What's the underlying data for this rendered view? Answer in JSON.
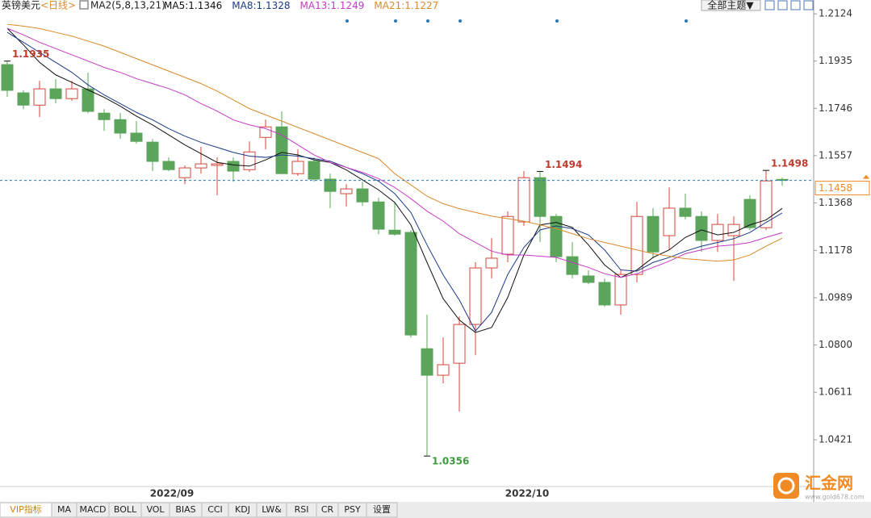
{
  "chart_data": {
    "type": "candlestick",
    "symbol": "英镑美元",
    "period": "<日线>",
    "indicator": "MA2(5,8,13,21)",
    "theme_button": "全部主题▼",
    "ylim": [
      1.0234,
      1.2147
    ],
    "yticks": [
      1.2124,
      1.1935,
      1.1746,
      1.1557,
      1.1368,
      1.1178,
      1.0989,
      {
        "value": 1.08,
        "label": "1.0800"
      },
      1.0611,
      1.0421
    ],
    "up_color": "#d2473a",
    "down_color": "#5aa55a",
    "ohlc": {
      "open": [
        1.1921,
        1.1808,
        1.1759,
        1.1824,
        1.1785,
        1.1824,
        1.1727,
        1.1701,
        1.1647,
        1.1611,
        1.1534,
        1.1469,
        1.1508,
        1.1518,
        1.1534,
        1.1501,
        1.163,
        1.1672,
        1.1485,
        1.1534,
        1.1463,
        1.1405,
        1.1424,
        1.1372,
        1.1259,
        1.125,
        1.0785,
        1.0679,
        1.0727,
        1.0882,
        1.1108,
        1.1163,
        1.1292,
        1.1469,
        1.1314,
        1.1153,
        1.1076,
        1.105,
        1.096,
        1.1082,
        1.1314,
        1.1237,
        1.1347,
        1.1314,
        1.1218,
        1.1237,
        1.1382,
        1.1269,
        1.1462
      ],
      "high": [
        1.1935,
        1.1818,
        1.1856,
        1.1863,
        1.1856,
        1.1889,
        1.1743,
        1.1727,
        1.1695,
        1.1624,
        1.155,
        1.1518,
        1.1592,
        1.155,
        1.155,
        1.1614,
        1.1701,
        1.1734,
        1.1582,
        1.155,
        1.1485,
        1.1443,
        1.1453,
        1.1389,
        1.1372,
        1.1259,
        1.0921,
        1.083,
        1.0914,
        1.1131,
        1.1227,
        1.1334,
        1.1495,
        1.1494,
        1.1324,
        1.1211,
        1.1098,
        1.1066,
        1.1098,
        1.1372,
        1.1347,
        1.143,
        1.1405,
        1.1334,
        1.1324,
        1.1314,
        1.1398,
        1.1498,
        1.1469
      ],
      "low": [
        1.1792,
        1.1743,
        1.1711,
        1.1766,
        1.1776,
        1.1727,
        1.1656,
        1.1624,
        1.1605,
        1.1495,
        1.1495,
        1.1443,
        1.1485,
        1.1398,
        1.1453,
        1.1492,
        1.1582,
        1.1485,
        1.1476,
        1.1453,
        1.1347,
        1.1353,
        1.1356,
        1.1243,
        1.1237,
        1.083,
        1.0356,
        1.0647,
        1.0534,
        1.0759,
        1.1066,
        1.1131,
        1.1276,
        1.1211,
        1.1131,
        1.1066,
        1.1043,
        1.0953,
        1.0921,
        1.105,
        1.1147,
        1.1179,
        1.1302,
        1.1172,
        1.1172,
        1.1056,
        1.1259,
        1.1259,
        1.1437
      ],
      "close": [
        1.1818,
        1.1759,
        1.1824,
        1.1785,
        1.1824,
        1.1734,
        1.1701,
        1.1647,
        1.1614,
        1.1534,
        1.1501,
        1.1508,
        1.1524,
        1.1524,
        1.1495,
        1.1572,
        1.1672,
        1.1485,
        1.1534,
        1.1463,
        1.1414,
        1.1424,
        1.1372,
        1.1263,
        1.1243,
        1.084,
        1.0679,
        1.0721,
        1.0882,
        1.1108,
        1.1147,
        1.1314,
        1.1469,
        1.1314,
        1.1153,
        1.1082,
        1.105,
        1.096,
        1.1082,
        1.1314,
        1.1172,
        1.1347,
        1.1314,
        1.1218,
        1.1282,
        1.1282,
        1.1269,
        1.1456,
        1.1458
      ]
    },
    "series": [
      {
        "name": "MA5",
        "last": 1.1346,
        "color": "#111111",
        "values": [
          1.2066,
          1.2,
          1.193,
          1.188,
          1.185,
          1.182,
          1.179,
          1.1755,
          1.1715,
          1.168,
          1.164,
          1.16,
          1.1565,
          1.153,
          1.152,
          1.1515,
          1.154,
          1.157,
          1.156,
          1.154,
          1.153,
          1.15,
          1.146,
          1.142,
          1.137,
          1.128,
          1.113,
          1.0985,
          1.09,
          1.085,
          1.087,
          1.099,
          1.116,
          1.128,
          1.129,
          1.127,
          1.12,
          1.112,
          1.107,
          1.11,
          1.115,
          1.118,
          1.123,
          1.126,
          1.124,
          1.125,
          1.128,
          1.13,
          1.1346
        ]
      },
      {
        "name": "MA8",
        "last": 1.1328,
        "color": "#1a3a8a",
        "values": [
          1.205,
          1.201,
          1.197,
          1.193,
          1.189,
          1.184,
          1.18,
          1.1765,
          1.173,
          1.17,
          1.1665,
          1.1635,
          1.161,
          1.159,
          1.157,
          1.1555,
          1.155,
          1.156,
          1.1555,
          1.1545,
          1.1535,
          1.151,
          1.1485,
          1.1455,
          1.1405,
          1.133,
          1.12,
          1.108,
          1.098,
          1.0856,
          1.093,
          1.1082,
          1.119,
          1.126,
          1.1276,
          1.1265,
          1.124,
          1.118,
          1.11,
          1.1095,
          1.113,
          1.115,
          1.1175,
          1.1195,
          1.121,
          1.1225,
          1.125,
          1.129,
          1.1328
        ]
      },
      {
        "name": "MA13",
        "last": 1.1249,
        "color": "#c639c6",
        "values": [
          1.2066,
          1.204,
          1.201,
          1.1985,
          1.196,
          1.1935,
          1.191,
          1.189,
          1.1865,
          1.1845,
          1.1825,
          1.18,
          1.1765,
          1.1735,
          1.17,
          1.168,
          1.1665,
          1.164,
          1.16,
          1.156,
          1.153,
          1.151,
          1.149,
          1.1465,
          1.143,
          1.1385,
          1.1335,
          1.1295,
          1.1245,
          1.121,
          1.1175,
          1.116,
          1.116,
          1.1155,
          1.115,
          1.113,
          1.111,
          1.1085,
          1.107,
          1.1085,
          1.111,
          1.1135,
          1.1165,
          1.118,
          1.1195,
          1.12,
          1.121,
          1.123,
          1.1249
        ]
      },
      {
        "name": "MA21",
        "last": 1.1227,
        "color": "#d98a2b",
        "values": [
          1.2082,
          1.2075,
          1.2065,
          1.205,
          1.2035,
          1.2015,
          1.1995,
          1.197,
          1.1945,
          1.192,
          1.1895,
          1.187,
          1.1845,
          1.1815,
          1.178,
          1.1745,
          1.172,
          1.1695,
          1.167,
          1.1645,
          1.162,
          1.1595,
          1.157,
          1.1545,
          1.1485,
          1.144,
          1.1395,
          1.1365,
          1.1345,
          1.133,
          1.1315,
          1.1305,
          1.1295,
          1.128,
          1.1265,
          1.1245,
          1.1225,
          1.121,
          1.1195,
          1.118,
          1.1165,
          1.1155,
          1.1145,
          1.114,
          1.1135,
          1.114,
          1.116,
          1.1195,
          1.1227
        ]
      }
    ],
    "last_price": 1.1458,
    "annotations": [
      {
        "value": 1.1935,
        "index": 0,
        "color": "#c0392b"
      },
      {
        "value": 1.1494,
        "index": 33,
        "color": "#c0392b"
      },
      {
        "value": 1.1498,
        "index": 47,
        "color": "#c0392b"
      },
      {
        "value": 1.0356,
        "index": 26,
        "color": "#3d9a3d"
      }
    ],
    "date_labels": [
      {
        "label": "2022/09",
        "index": 10
      },
      {
        "label": "2022/10",
        "index": 32
      }
    ],
    "tabs": [
      "VIP指标",
      "MA",
      "MACD",
      "BOLL",
      "VOL",
      "BIAS",
      "CCI",
      "KDJ",
      "LW&",
      "RSI",
      "CR",
      "PSY",
      "设置"
    ],
    "watermark": "汇金网",
    "watermark_url": "www.gold678.com"
  }
}
